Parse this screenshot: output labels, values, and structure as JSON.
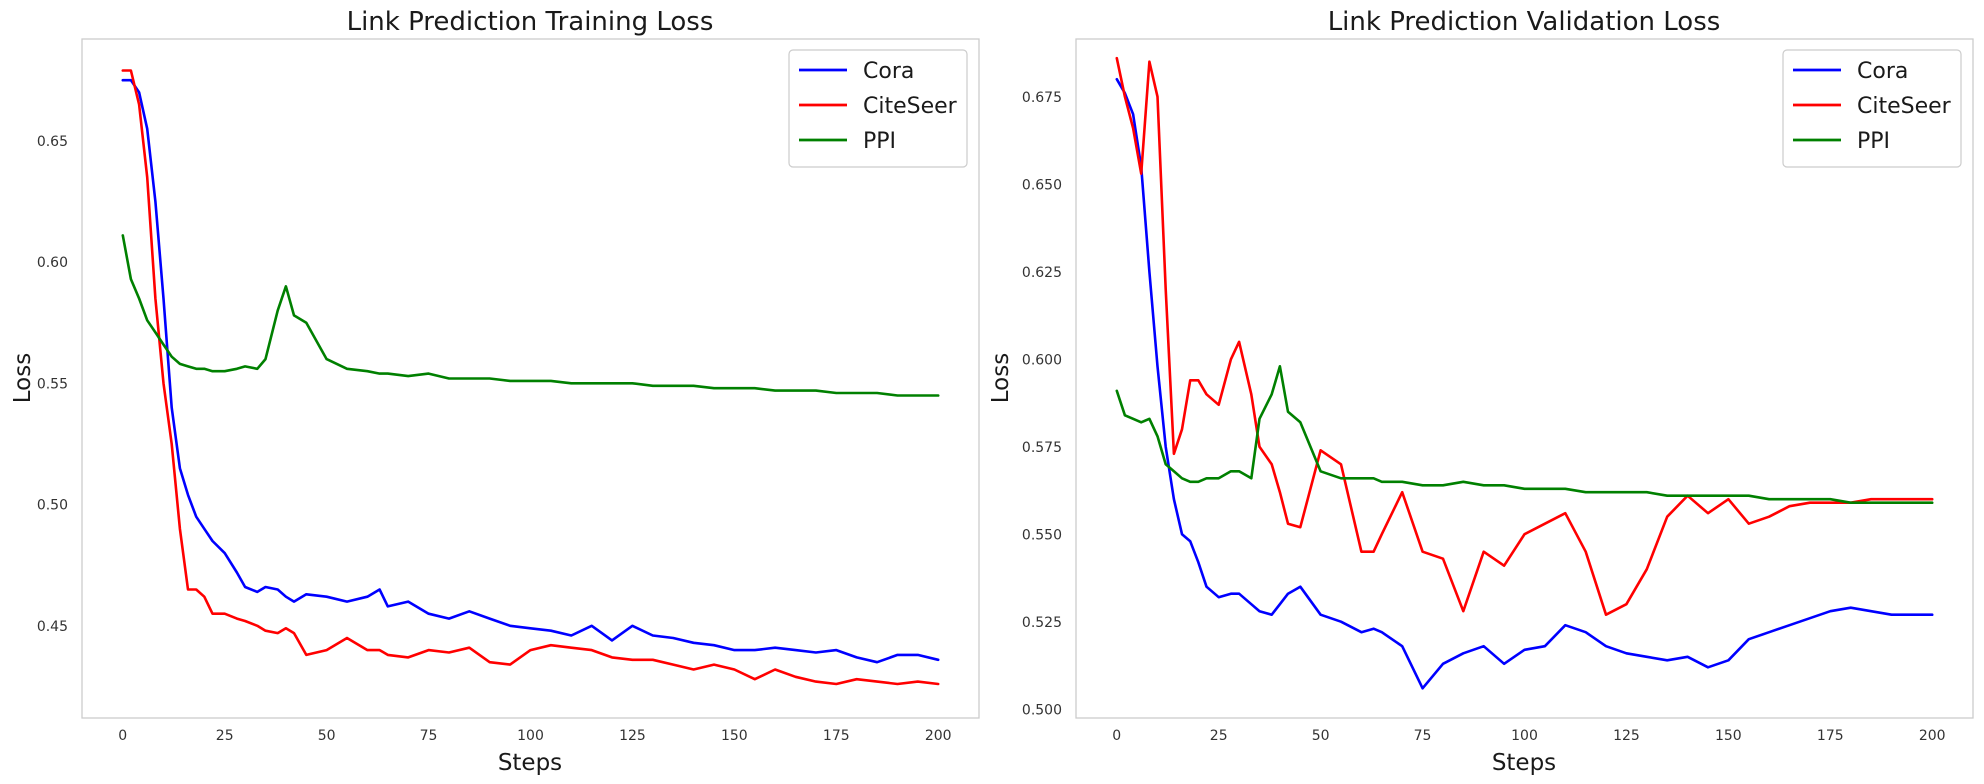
{
  "chart_data": [
    {
      "type": "line",
      "title": "Link Prediction Training Loss",
      "xlabel": "Steps",
      "ylabel": "Loss",
      "xlim": [
        -10,
        210
      ],
      "ylim": [
        0.412,
        0.692
      ],
      "xticks": [
        0,
        25,
        50,
        75,
        100,
        125,
        150,
        175,
        200
      ],
      "yticks": [
        0.45,
        0.5,
        0.55,
        0.6,
        0.65
      ],
      "ytick_labels": [
        "0.45",
        "0.50",
        "0.55",
        "0.60",
        "0.65"
      ],
      "grid": false,
      "legend_position": "top-right",
      "x": [
        0,
        2,
        4,
        6,
        8,
        10,
        12,
        14,
        16,
        18,
        20,
        22,
        25,
        28,
        30,
        33,
        35,
        38,
        40,
        42,
        45,
        50,
        55,
        60,
        63,
        65,
        70,
        75,
        80,
        85,
        90,
        95,
        100,
        105,
        110,
        115,
        120,
        125,
        130,
        135,
        140,
        145,
        150,
        155,
        160,
        165,
        170,
        175,
        180,
        185,
        190,
        195,
        200
      ],
      "series": [
        {
          "name": "Cora",
          "color": "#0000ff",
          "values": [
            0.675,
            0.675,
            0.67,
            0.655,
            0.625,
            0.585,
            0.54,
            0.515,
            0.504,
            0.495,
            0.49,
            0.485,
            0.48,
            0.472,
            0.466,
            0.464,
            0.466,
            0.465,
            0.462,
            0.46,
            0.463,
            0.462,
            0.46,
            0.462,
            0.465,
            0.458,
            0.46,
            0.455,
            0.453,
            0.456,
            0.453,
            0.45,
            0.449,
            0.448,
            0.446,
            0.45,
            0.444,
            0.45,
            0.446,
            0.445,
            0.443,
            0.442,
            0.44,
            0.44,
            0.441,
            0.44,
            0.439,
            0.44,
            0.437,
            0.435,
            0.438,
            0.438,
            0.436
          ]
        },
        {
          "name": "CiteSeer",
          "color": "#ff0000",
          "values": [
            0.679,
            0.679,
            0.665,
            0.635,
            0.585,
            0.55,
            0.525,
            0.49,
            0.465,
            0.465,
            0.462,
            0.455,
            0.455,
            0.453,
            0.452,
            0.45,
            0.448,
            0.447,
            0.449,
            0.447,
            0.438,
            0.44,
            0.445,
            0.44,
            0.44,
            0.438,
            0.437,
            0.44,
            0.439,
            0.441,
            0.435,
            0.434,
            0.44,
            0.442,
            0.441,
            0.44,
            0.437,
            0.436,
            0.436,
            0.434,
            0.432,
            0.434,
            0.432,
            0.428,
            0.432,
            0.429,
            0.427,
            0.426,
            0.428,
            0.427,
            0.426,
            0.427,
            0.426
          ]
        },
        {
          "name": "PPI",
          "color": "#008000",
          "values": [
            0.611,
            0.593,
            0.585,
            0.576,
            0.571,
            0.566,
            0.561,
            0.558,
            0.557,
            0.556,
            0.556,
            0.555,
            0.555,
            0.556,
            0.557,
            0.556,
            0.56,
            0.58,
            0.59,
            0.578,
            0.575,
            0.56,
            0.556,
            0.555,
            0.554,
            0.554,
            0.553,
            0.554,
            0.552,
            0.552,
            0.552,
            0.551,
            0.551,
            0.551,
            0.55,
            0.55,
            0.55,
            0.55,
            0.549,
            0.549,
            0.549,
            0.548,
            0.548,
            0.548,
            0.547,
            0.547,
            0.547,
            0.546,
            0.546,
            0.546,
            0.545,
            0.545,
            0.545
          ]
        }
      ]
    },
    {
      "type": "line",
      "title": "Link Prediction Validation Loss",
      "xlabel": "Steps",
      "ylabel": "Loss",
      "xlim": [
        -10,
        210
      ],
      "ylim": [
        0.4975,
        0.6915
      ],
      "xticks": [
        0,
        25,
        50,
        75,
        100,
        125,
        150,
        175,
        200
      ],
      "yticks": [
        0.5,
        0.525,
        0.55,
        0.575,
        0.6,
        0.625,
        0.65,
        0.675
      ],
      "ytick_labels": [
        "0.500",
        "0.525",
        "0.550",
        "0.575",
        "0.600",
        "0.625",
        "0.650",
        "0.675"
      ],
      "grid": false,
      "legend_position": "top-right",
      "x": [
        0,
        2,
        4,
        6,
        8,
        10,
        12,
        14,
        16,
        18,
        20,
        22,
        25,
        28,
        30,
        33,
        35,
        38,
        40,
        42,
        45,
        50,
        55,
        60,
        63,
        65,
        70,
        75,
        80,
        85,
        90,
        95,
        100,
        105,
        110,
        115,
        120,
        125,
        130,
        135,
        140,
        145,
        150,
        155,
        160,
        165,
        170,
        175,
        180,
        185,
        190,
        195,
        200
      ],
      "series": [
        {
          "name": "Cora",
          "color": "#0000ff",
          "values": [
            0.68,
            0.676,
            0.67,
            0.655,
            0.625,
            0.598,
            0.575,
            0.56,
            0.55,
            0.548,
            0.542,
            0.535,
            0.532,
            0.533,
            0.533,
            0.53,
            0.528,
            0.527,
            0.53,
            0.533,
            0.535,
            0.527,
            0.525,
            0.522,
            0.523,
            0.522,
            0.518,
            0.506,
            0.513,
            0.516,
            0.518,
            0.513,
            0.517,
            0.518,
            0.524,
            0.522,
            0.518,
            0.516,
            0.515,
            0.514,
            0.515,
            0.512,
            0.514,
            0.52,
            0.522,
            0.524,
            0.526,
            0.528,
            0.529,
            0.528,
            0.527,
            0.527,
            0.527
          ]
        },
        {
          "name": "CiteSeer",
          "color": "#ff0000",
          "values": [
            0.686,
            0.675,
            0.666,
            0.653,
            0.685,
            0.675,
            0.62,
            0.573,
            0.58,
            0.594,
            0.594,
            0.59,
            0.587,
            0.6,
            0.605,
            0.59,
            0.575,
            0.57,
            0.562,
            0.553,
            0.552,
            0.574,
            0.57,
            0.545,
            0.545,
            0.55,
            0.562,
            0.545,
            0.543,
            0.528,
            0.545,
            0.541,
            0.55,
            0.553,
            0.556,
            0.545,
            0.527,
            0.53,
            0.54,
            0.555,
            0.561,
            0.556,
            0.56,
            0.553,
            0.555,
            0.558,
            0.559,
            0.559,
            0.559,
            0.56,
            0.56,
            0.56,
            0.56
          ]
        },
        {
          "name": "PPI",
          "color": "#008000",
          "values": [
            0.591,
            0.584,
            0.583,
            0.582,
            0.583,
            0.578,
            0.57,
            0.568,
            0.566,
            0.565,
            0.565,
            0.566,
            0.566,
            0.568,
            0.568,
            0.566,
            0.583,
            0.59,
            0.598,
            0.585,
            0.582,
            0.568,
            0.566,
            0.566,
            0.566,
            0.565,
            0.565,
            0.564,
            0.564,
            0.565,
            0.564,
            0.564,
            0.563,
            0.563,
            0.563,
            0.562,
            0.562,
            0.562,
            0.562,
            0.561,
            0.561,
            0.561,
            0.561,
            0.561,
            0.56,
            0.56,
            0.56,
            0.56,
            0.559,
            0.559,
            0.559,
            0.559,
            0.559
          ]
        }
      ]
    }
  ]
}
